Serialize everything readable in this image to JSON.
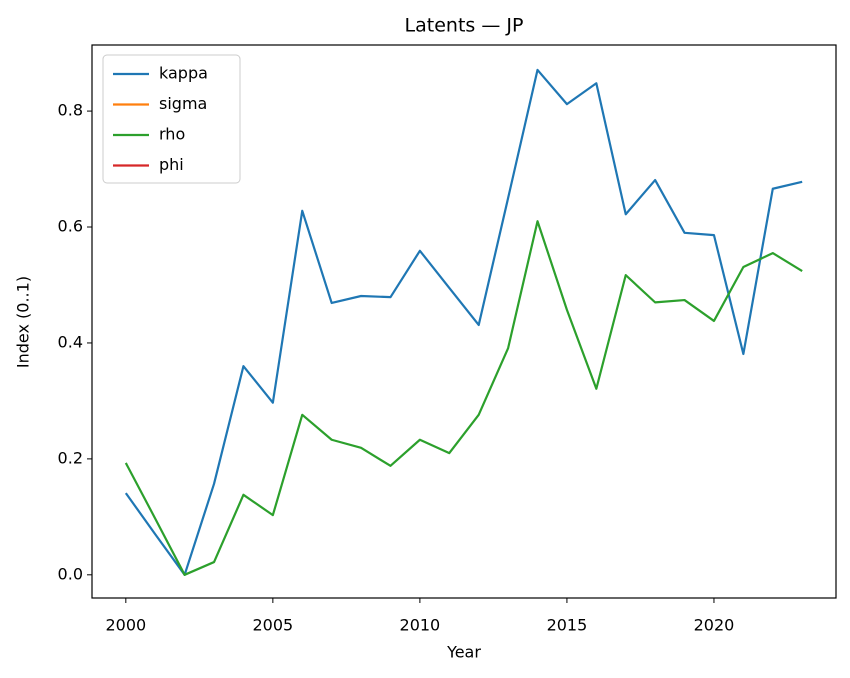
{
  "chart_data": {
    "type": "line",
    "title": "Latents — JP",
    "xlabel": "Year",
    "ylabel": "Index (0..1)",
    "x": [
      2000,
      2001,
      2002,
      2003,
      2004,
      2005,
      2006,
      2007,
      2008,
      2009,
      2010,
      2011,
      2012,
      2013,
      2014,
      2015,
      2016,
      2017,
      2018,
      2019,
      2020,
      2021,
      2022,
      2023
    ],
    "series": [
      {
        "name": "kappa",
        "color": "#1f77b4",
        "values": [
          0.141,
          0.07,
          0,
          0.157,
          0.36,
          0.297,
          0.628,
          0.469,
          0.481,
          0.479,
          0.559,
          0.495,
          0.431,
          0.65,
          0.871,
          0.812,
          0.848,
          0.622,
          0.681,
          0.59,
          0.586,
          0.381,
          0.666,
          0.678
        ]
      },
      {
        "name": "sigma",
        "color": "#ff7f0e",
        "values": [
          null,
          null,
          null,
          null,
          null,
          null,
          null,
          null,
          null,
          null,
          null,
          null,
          null,
          null,
          null,
          null,
          null,
          null,
          null,
          null,
          null,
          null,
          null,
          null
        ]
      },
      {
        "name": "rho",
        "color": "#2ca02c",
        "values": [
          0.193,
          0.097,
          0,
          0.022,
          0.138,
          0.103,
          0.276,
          0.233,
          0.219,
          0.188,
          0.233,
          0.21,
          0.276,
          0.391,
          0.61,
          0.457,
          0.321,
          0.517,
          0.47,
          0.474,
          0.438,
          0.531,
          0.555,
          0.524
        ]
      },
      {
        "name": "phi",
        "color": "#d62728",
        "values": [
          null,
          null,
          null,
          null,
          null,
          null,
          null,
          null,
          null,
          null,
          null,
          null,
          null,
          null,
          null,
          null,
          null,
          null,
          null,
          null,
          null,
          null,
          null,
          null
        ]
      }
    ],
    "xlim": [
      1998.85,
      2024.15
    ],
    "ylim": [
      -0.04,
      0.914
    ],
    "xticks": [
      2000,
      2005,
      2010,
      2015,
      2020
    ],
    "yticks": [
      {
        "value": 0,
        "label": "0.0"
      },
      0.2,
      0.4,
      0.6,
      0.8
    ],
    "legend": "upper left"
  }
}
